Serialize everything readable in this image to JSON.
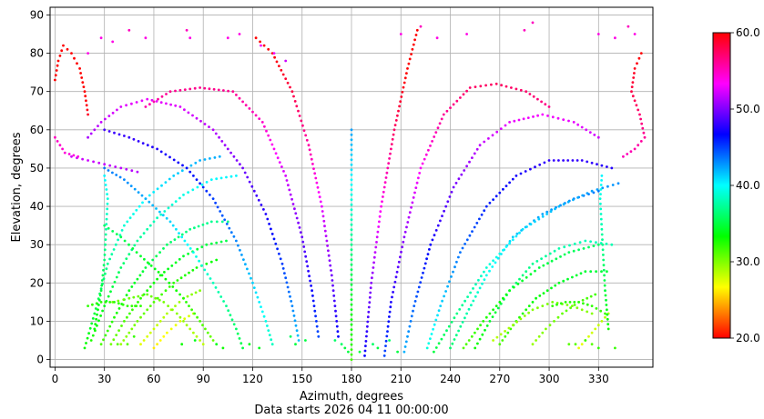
{
  "chart_data": {
    "type": "scatter",
    "xlabel": "Azimuth, degrees",
    "ylabel": "Elevation, degrees",
    "subtitle": "Data starts 2026 04 11 00:00:00",
    "xlim": [
      -3,
      363
    ],
    "ylim": [
      -2,
      92
    ],
    "x_ticks": [
      0,
      30,
      60,
      90,
      120,
      150,
      180,
      210,
      240,
      270,
      300,
      330
    ],
    "y_ticks": [
      0,
      10,
      20,
      30,
      40,
      50,
      60,
      70,
      80,
      90
    ],
    "grid": true,
    "colorbar": {
      "min": 20,
      "max": 60,
      "ticks": [
        "20.0",
        "30.0",
        "40.0",
        "50.0",
        "60.0"
      ],
      "colormap": "hsv"
    },
    "tracks": [
      {
        "points": [
          [
            18,
            3
          ],
          [
            24,
            12
          ],
          [
            32,
            25
          ],
          [
            42,
            35
          ],
          [
            55,
            42
          ],
          [
            72,
            48
          ],
          [
            88,
            52
          ],
          [
            100,
            53
          ]
        ],
        "cvalue": 38
      },
      {
        "points": [
          [
            22,
            5
          ],
          [
            30,
            14
          ],
          [
            40,
            24
          ],
          [
            50,
            31
          ],
          [
            62,
            37
          ],
          [
            78,
            43
          ],
          [
            95,
            47
          ],
          [
            110,
            48
          ]
        ],
        "cvalue": 37
      },
      {
        "points": [
          [
            28,
            4
          ],
          [
            36,
            11
          ],
          [
            45,
            18
          ],
          [
            55,
            24
          ],
          [
            68,
            30
          ],
          [
            82,
            34
          ],
          [
            95,
            36
          ],
          [
            105,
            36
          ]
        ],
        "cvalue": 36
      },
      {
        "points": [
          [
            34,
            4
          ],
          [
            42,
            10
          ],
          [
            52,
            16
          ],
          [
            64,
            22
          ],
          [
            78,
            27
          ],
          [
            92,
            30
          ],
          [
            104,
            31
          ]
        ],
        "cvalue": 35
      },
      {
        "points": [
          [
            40,
            4
          ],
          [
            50,
            10
          ],
          [
            60,
            15
          ],
          [
            72,
            20
          ],
          [
            86,
            24
          ],
          [
            98,
            26
          ]
        ],
        "cvalue": 34
      },
      {
        "points": [
          [
            52,
            4
          ],
          [
            60,
            8
          ],
          [
            68,
            12
          ],
          [
            78,
            16
          ],
          [
            88,
            18
          ]
        ],
        "cvalue": 32
      },
      {
        "points": [
          [
            60,
            3
          ],
          [
            68,
            7
          ],
          [
            76,
            10
          ],
          [
            84,
            12
          ]
        ],
        "cvalue": 31
      },
      {
        "points": [
          [
            90,
            4
          ],
          [
            82,
            8
          ],
          [
            74,
            12
          ],
          [
            66,
            15
          ],
          [
            56,
            17
          ],
          [
            45,
            16
          ],
          [
            35,
            15
          ]
        ],
        "cvalue": 33
      },
      {
        "points": [
          [
            96,
            5
          ],
          [
            88,
            10
          ],
          [
            78,
            16
          ],
          [
            65,
            22
          ],
          [
            52,
            27
          ],
          [
            40,
            32
          ],
          [
            30,
            35
          ]
        ],
        "cvalue": 35
      },
      {
        "points": [
          [
            114,
            3
          ],
          [
            110,
            8
          ],
          [
            104,
            14
          ],
          [
            96,
            20
          ],
          [
            84,
            28
          ],
          [
            70,
            36
          ],
          [
            55,
            42
          ],
          [
            42,
            47
          ],
          [
            30,
            50
          ]
        ],
        "cvalue": 40
      },
      {
        "points": [
          [
            132,
            4
          ],
          [
            128,
            10
          ],
          [
            120,
            20
          ],
          [
            110,
            31
          ],
          [
            96,
            42
          ],
          [
            80,
            50
          ],
          [
            62,
            55
          ],
          [
            45,
            58
          ],
          [
            30,
            60
          ]
        ],
        "cvalue": 43
      },
      {
        "points": [
          [
            148,
            5
          ],
          [
            144,
            14
          ],
          [
            138,
            25
          ],
          [
            128,
            38
          ],
          [
            114,
            50
          ],
          [
            96,
            60
          ],
          [
            76,
            66
          ],
          [
            56,
            68
          ],
          [
            40,
            66
          ],
          [
            28,
            62
          ],
          [
            20,
            58
          ]
        ],
        "cvalue": 46
      },
      {
        "points": [
          [
            160,
            6
          ],
          [
            156,
            18
          ],
          [
            150,
            32
          ],
          [
            140,
            48
          ],
          [
            126,
            62
          ],
          [
            108,
            70
          ],
          [
            88,
            71
          ],
          [
            70,
            70
          ],
          [
            55,
            66
          ]
        ],
        "cvalue": 49
      },
      {
        "points": [
          [
            172,
            6
          ],
          [
            168,
            22
          ],
          [
            162,
            40
          ],
          [
            154,
            56
          ],
          [
            144,
            70
          ],
          [
            132,
            80
          ],
          [
            122,
            84
          ]
        ],
        "cvalue": 51
      },
      {
        "points": [
          [
            180,
            0
          ],
          [
            180,
            30
          ],
          [
            180,
            60
          ]
        ],
        "cvalue": 37
      },
      {
        "points": [
          [
            188,
            1
          ],
          [
            192,
            20
          ],
          [
            198,
            40
          ],
          [
            206,
            60
          ],
          [
            214,
            76
          ],
          [
            220,
            86
          ]
        ],
        "cvalue": 52
      },
      {
        "points": [
          [
            200,
            1
          ],
          [
            204,
            15
          ],
          [
            212,
            32
          ],
          [
            222,
            50
          ],
          [
            236,
            64
          ],
          [
            252,
            71
          ],
          [
            268,
            72
          ],
          [
            286,
            70
          ],
          [
            300,
            66
          ]
        ],
        "cvalue": 50
      },
      {
        "points": [
          [
            212,
            2
          ],
          [
            218,
            14
          ],
          [
            228,
            30
          ],
          [
            242,
            45
          ],
          [
            258,
            56
          ],
          [
            276,
            62
          ],
          [
            296,
            64
          ],
          [
            315,
            62
          ],
          [
            330,
            58
          ]
        ],
        "cvalue": 47
      },
      {
        "points": [
          [
            226,
            3
          ],
          [
            234,
            14
          ],
          [
            246,
            28
          ],
          [
            262,
            40
          ],
          [
            280,
            48
          ],
          [
            300,
            52
          ],
          [
            320,
            52
          ],
          [
            338,
            50
          ]
        ],
        "cvalue": 44
      },
      {
        "points": [
          [
            240,
            3
          ],
          [
            250,
            12
          ],
          [
            262,
            22
          ],
          [
            278,
            32
          ],
          [
            296,
            38
          ],
          [
            315,
            42
          ],
          [
            330,
            44
          ]
        ],
        "cvalue": 41
      },
      {
        "points": [
          [
            255,
            3
          ],
          [
            264,
            10
          ],
          [
            276,
            18
          ],
          [
            290,
            25
          ],
          [
            306,
            29
          ],
          [
            322,
            31
          ],
          [
            338,
            30
          ]
        ],
        "cvalue": 38
      },
      {
        "points": [
          [
            270,
            4
          ],
          [
            280,
            10
          ],
          [
            292,
            16
          ],
          [
            306,
            20
          ],
          [
            322,
            23
          ],
          [
            335,
            23
          ]
        ],
        "cvalue": 36
      },
      {
        "points": [
          [
            290,
            4
          ],
          [
            298,
            8
          ],
          [
            308,
            12
          ],
          [
            318,
            15
          ],
          [
            328,
            17
          ]
        ],
        "cvalue": 34
      },
      {
        "points": [
          [
            318,
            3
          ],
          [
            324,
            6
          ],
          [
            330,
            9
          ],
          [
            336,
            12
          ]
        ],
        "cvalue": 32
      },
      {
        "points": [
          [
            266,
            5
          ],
          [
            278,
            9
          ],
          [
            290,
            13
          ],
          [
            302,
            15
          ],
          [
            314,
            14
          ],
          [
            326,
            12
          ]
        ],
        "cvalue": 33
      },
      {
        "points": [
          [
            248,
            3
          ],
          [
            260,
            10
          ],
          [
            276,
            18
          ],
          [
            294,
            24
          ],
          [
            312,
            28
          ],
          [
            330,
            30
          ]
        ],
        "cvalue": 36
      },
      {
        "points": [
          [
            230,
            2
          ],
          [
            244,
            12
          ],
          [
            262,
            24
          ],
          [
            284,
            34
          ],
          [
            306,
            40
          ],
          [
            326,
            44
          ],
          [
            342,
            46
          ]
        ],
        "cvalue": 40
      },
      {
        "points": [
          [
            10,
            53
          ],
          [
            20,
            52
          ],
          [
            30,
            51
          ],
          [
            40,
            50
          ],
          [
            50,
            49
          ]
        ],
        "cvalue": 48
      },
      {
        "points": [
          [
            0,
            58
          ],
          [
            6,
            54
          ],
          [
            14,
            53
          ]
        ],
        "cvalue": 50
      },
      {
        "points": [
          [
            345,
            53
          ],
          [
            352,
            55
          ],
          [
            358,
            58
          ],
          [
            355,
            64
          ],
          [
            350,
            70
          ],
          [
            352,
            76
          ],
          [
            356,
            80
          ]
        ],
        "cvalue": 51
      },
      {
        "points": [
          [
            0,
            73
          ],
          [
            2,
            78
          ],
          [
            5,
            82
          ],
          [
            10,
            80
          ],
          [
            15,
            76
          ],
          [
            18,
            70
          ],
          [
            20,
            64
          ]
        ],
        "cvalue": 53
      },
      {
        "points": [
          [
            24,
            8
          ],
          [
            28,
            18
          ],
          [
            30,
            26
          ],
          [
            31,
            34
          ],
          [
            32,
            42
          ],
          [
            30,
            48
          ]
        ],
        "cvalue": 37
      },
      {
        "points": [
          [
            336,
            8
          ],
          [
            334,
            18
          ],
          [
            333,
            26
          ],
          [
            332,
            34
          ],
          [
            331,
            42
          ],
          [
            332,
            48
          ]
        ],
        "cvalue": 37
      },
      {
        "points": [
          [
            20,
            14
          ],
          [
            28,
            15
          ],
          [
            36,
            15
          ],
          [
            44,
            14
          ],
          [
            52,
            14
          ]
        ],
        "cvalue": 35
      },
      {
        "points": [
          [
            302,
            14
          ],
          [
            310,
            15
          ],
          [
            318,
            15
          ],
          [
            326,
            14
          ],
          [
            334,
            12
          ]
        ],
        "cvalue": 35
      }
    ],
    "scatter_points": [
      [
        20,
        80,
        54
      ],
      [
        28,
        84,
        54
      ],
      [
        35,
        83,
        54
      ],
      [
        45,
        86,
        55
      ],
      [
        55,
        84,
        54
      ],
      [
        80,
        86,
        55
      ],
      [
        82,
        84,
        54
      ],
      [
        105,
        84,
        54
      ],
      [
        112,
        85,
        54
      ],
      [
        125,
        82,
        53
      ],
      [
        133,
        80,
        53
      ],
      [
        140,
        78,
        52
      ],
      [
        210,
        85,
        54
      ],
      [
        222,
        87,
        55
      ],
      [
        232,
        84,
        54
      ],
      [
        250,
        85,
        54
      ],
      [
        285,
        86,
        55
      ],
      [
        290,
        88,
        55
      ],
      [
        330,
        85,
        54
      ],
      [
        340,
        84,
        54
      ],
      [
        348,
        87,
        55
      ],
      [
        352,
        85,
        54
      ],
      [
        170,
        5,
        36
      ],
      [
        174,
        4,
        36
      ],
      [
        176,
        3,
        35
      ],
      [
        178,
        2,
        35
      ],
      [
        185,
        2,
        35
      ],
      [
        193,
        4,
        36
      ],
      [
        196,
        3,
        35
      ],
      [
        203,
        5,
        36
      ],
      [
        208,
        2,
        35
      ],
      [
        143,
        6,
        36
      ],
      [
        146,
        4,
        35
      ],
      [
        152,
        5,
        35
      ],
      [
        118,
        4,
        34
      ],
      [
        124,
        3,
        34
      ],
      [
        98,
        4,
        34
      ],
      [
        102,
        3,
        33
      ],
      [
        85,
        5,
        34
      ],
      [
        77,
        4,
        33
      ],
      [
        38,
        4,
        31
      ],
      [
        44,
        4,
        31
      ],
      [
        48,
        6,
        32
      ],
      [
        312,
        4,
        31
      ],
      [
        316,
        4,
        31
      ],
      [
        322,
        5,
        32
      ],
      [
        326,
        4,
        31
      ],
      [
        330,
        3,
        32
      ],
      [
        340,
        3,
        32
      ]
    ]
  }
}
